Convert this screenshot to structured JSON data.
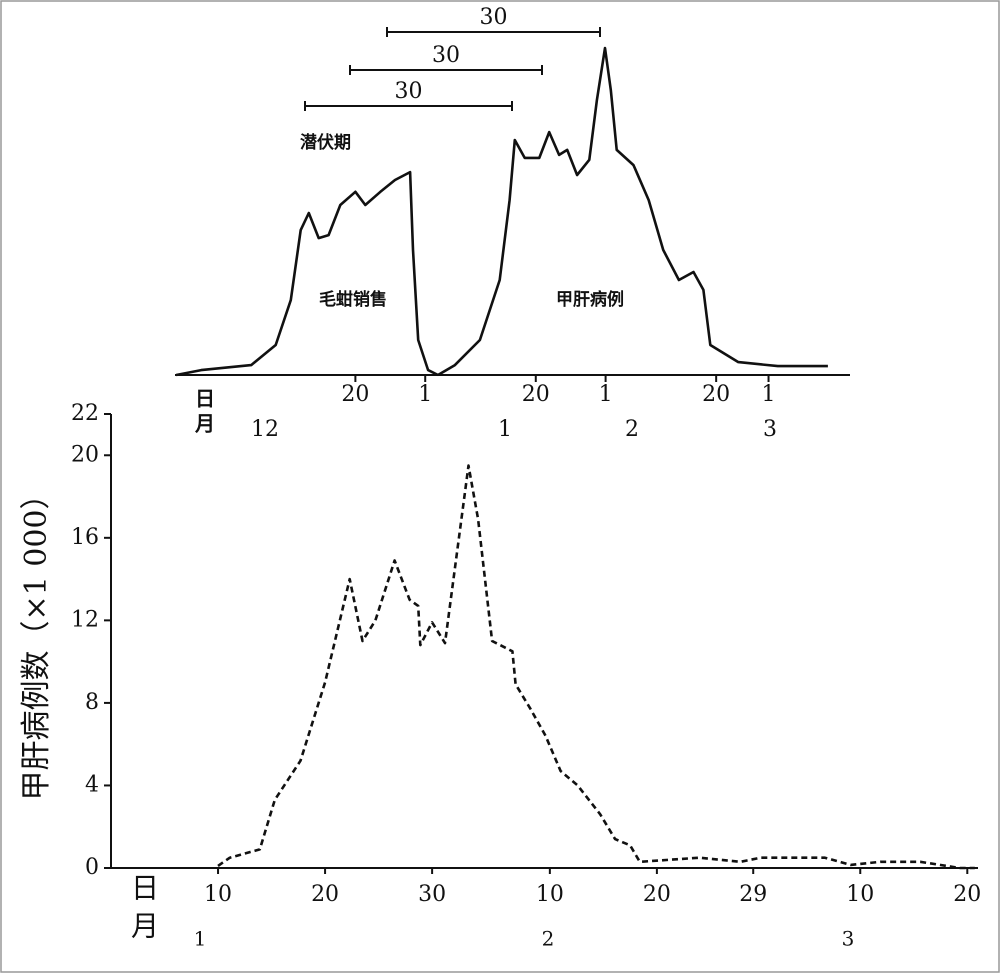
{
  "chart_data": [
    {
      "type": "line",
      "annotations": [
        "潜伏期",
        "30",
        "30",
        "30"
      ],
      "x_axis_labels": [
        "日",
        "月"
      ],
      "months": [
        "12",
        "1",
        "2",
        "3"
      ],
      "xlim": [
        -42,
        74
      ],
      "ylim": [
        0,
        100
      ],
      "xticks": [
        {
          "value": -11,
          "label": "20"
        },
        1,
        {
          "value": 20,
          "label": "20"
        },
        {
          "value": 32,
          "label": "1"
        },
        {
          "value": 51,
          "label": "20"
        },
        {
          "value": 60,
          "label": "1"
        }
      ],
      "series": [
        {
          "name": "毛蚶销售",
          "color": "#111111",
          "x": [
            -41.8,
            -37.5,
            -28.9,
            -24.7,
            -22.1,
            -20.4,
            -19.0,
            -17.3,
            -15.6,
            -13.6,
            -11,
            -9.3,
            -6.7,
            -4.2,
            -1.6,
            -1.1,
            -0.2,
            1.5,
            3.2
          ],
          "values": [
            0,
            1.5,
            3,
            9.1,
            22.7,
            43.9,
            49.1,
            41.5,
            42.4,
            51.5,
            55.5,
            51.5,
            55.5,
            59.1,
            61.5,
            37.9,
            10.6,
            1.5,
            0
          ]
        },
        {
          "name": "甲肝病例",
          "color": "#111111",
          "x": [
            3.2,
            6.1,
            10.4,
            13.8,
            15.5,
            16.4,
            18.1,
            20.6,
            22.3,
            24.0,
            25.4,
            27.1,
            29.2,
            30.5,
            31.9,
            32.9,
            33.9,
            36.8,
            39.4,
            41.9,
            44.6,
            47.1,
            48.8,
            50.0,
            54.8,
            61.6,
            70.2
          ],
          "values": [
            0,
            3,
            10.6,
            28.8,
            53,
            71.2,
            65.8,
            65.8,
            73.6,
            66.7,
            68.2,
            60.6,
            65.2,
            83.3,
            99.1,
            86.4,
            68.2,
            63.6,
            53,
            37.9,
            28.8,
            31.2,
            25.8,
            9.1,
            3.9,
            2.7,
            2.7
          ]
        }
      ]
    },
    {
      "type": "line",
      "y_label": "甲肝病例数（×1 000）",
      "x_axis_labels": [
        "日",
        "月"
      ],
      "months": [
        "1",
        "2",
        "3"
      ],
      "color": "#111111",
      "dashed": true,
      "xlim": [
        0,
        81
      ],
      "ylim": [
        0,
        22
      ],
      "xticks": [
        10,
        20,
        30,
        {
          "value": 41,
          "label": "10"
        },
        {
          "value": 51,
          "label": "20"
        },
        {
          "value": 60,
          "label": "29"
        },
        {
          "value": 70,
          "label": "10"
        },
        {
          "value": 80,
          "label": "20"
        }
      ],
      "yticks": [
        0,
        4,
        8,
        12,
        16,
        20,
        22
      ],
      "x": [
        10,
        11.1,
        13.9,
        15.3,
        17.7,
        20,
        22.3,
        23.5,
        24.7,
        26.5,
        27.9,
        28.7,
        28.9,
        30,
        31.2,
        33.4,
        34.3,
        35.6,
        37.5,
        37.8,
        39.2,
        40.6,
        42,
        43.6,
        45.7,
        47.1,
        48.5,
        49.4,
        55,
        58.8,
        60.7,
        66.7,
        69.1,
        71.9,
        75.6,
        79.3,
        80.7
      ],
      "values": [
        0.1,
        0.5,
        0.9,
        3.3,
        5.2,
        9,
        14,
        11,
        12,
        14.9,
        13,
        12.7,
        10.8,
        11.9,
        10.9,
        19.5,
        16.9,
        11,
        10.5,
        8.9,
        7.7,
        6.4,
        4.7,
        4,
        2.6,
        1.4,
        1.1,
        0.3,
        0.5,
        0.3,
        0.5,
        0.5,
        0.15,
        0.3,
        0.3,
        0,
        0
      ]
    }
  ]
}
